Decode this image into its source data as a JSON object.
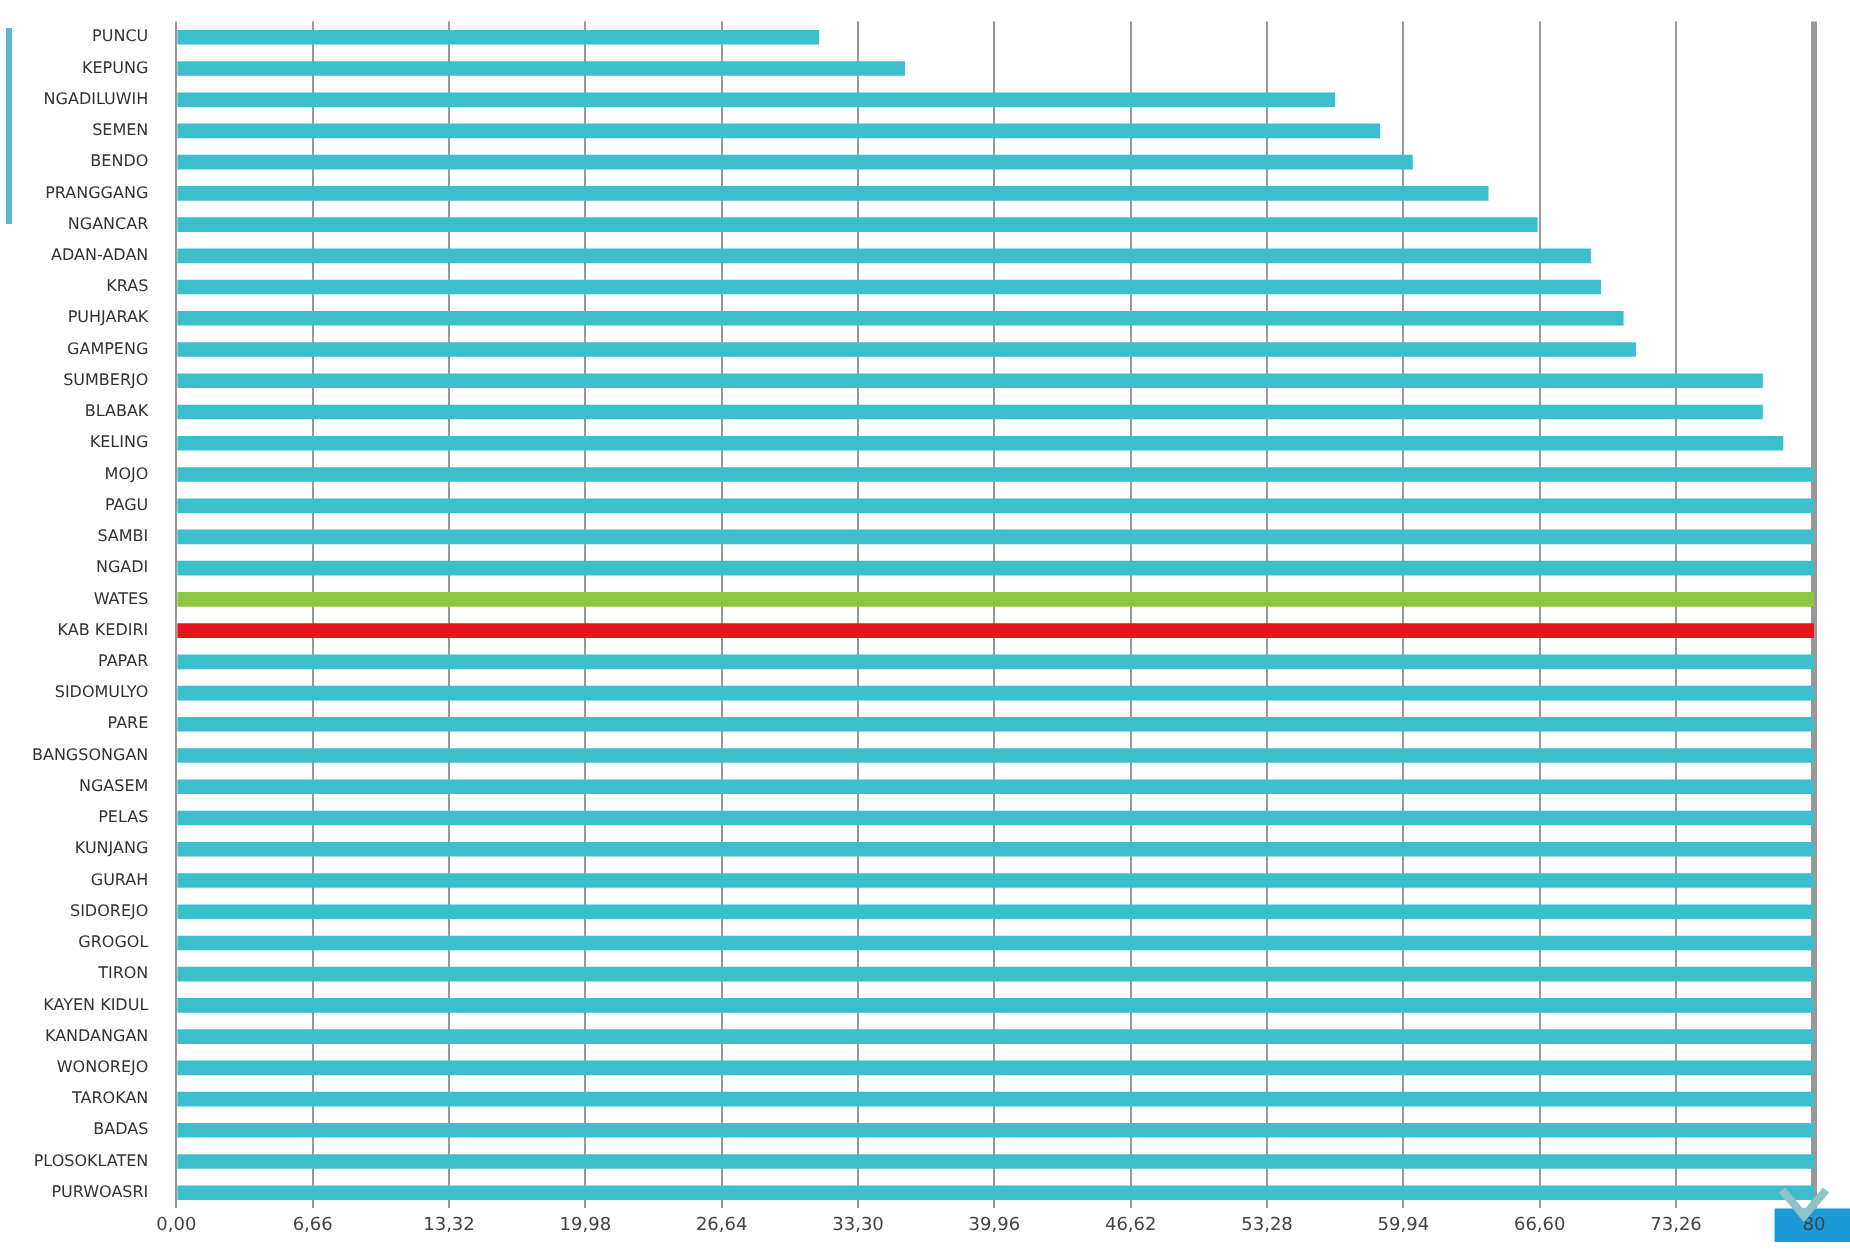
{
  "chart_data": {
    "type": "bar",
    "orientation": "horizontal",
    "categories": [
      "PUNCU",
      "KEPUNG",
      "NGADILUWIH",
      "SEMEN",
      "BENDO",
      "PRANGGANG",
      "NGANCAR",
      "ADAN-ADAN",
      "KRAS",
      "PUHJARAK",
      "GAMPENG",
      "SUMBERJO",
      "BLABAK",
      "KELING",
      "MOJO",
      "PAGU",
      "SAMBI",
      "NGADI",
      "WATES",
      "KAB KEDIRI",
      "PAPAR",
      "SIDOMULYO",
      "PARE",
      "BANGSONGAN",
      "NGASEM",
      "PELAS",
      "KUNJANG",
      "GURAH",
      "SIDOREJO",
      "GROGOL",
      "TIRON",
      "KAYEN KIDUL",
      "KANDANGAN",
      "WONOREJO",
      "TAROKAN",
      "BADAS",
      "PLOSOKLATEN",
      "PURWOASRI"
    ],
    "values": [
      31.4,
      35.6,
      56.6,
      58.8,
      60.4,
      64.1,
      66.5,
      69.1,
      69.6,
      70.7,
      71.3,
      77.5,
      77.5,
      78.5,
      80,
      80,
      80,
      80,
      80,
      80,
      80,
      80,
      80,
      80,
      80,
      80,
      80,
      80,
      80,
      80,
      80,
      80,
      80,
      80,
      80,
      80,
      80,
      80
    ],
    "colors": [
      "#3bbfcc",
      "#3bbfcc",
      "#3bbfcc",
      "#3bbfcc",
      "#3bbfcc",
      "#3bbfcc",
      "#3bbfcc",
      "#3bbfcc",
      "#3bbfcc",
      "#3bbfcc",
      "#3bbfcc",
      "#3bbfcc",
      "#3bbfcc",
      "#3bbfcc",
      "#3bbfcc",
      "#3bbfcc",
      "#3bbfcc",
      "#3bbfcc",
      "#8dc63f",
      "#e8141b",
      "#3bbfcc",
      "#3bbfcc",
      "#3bbfcc",
      "#3bbfcc",
      "#3bbfcc",
      "#3bbfcc",
      "#3bbfcc",
      "#3bbfcc",
      "#3bbfcc",
      "#3bbfcc",
      "#3bbfcc",
      "#3bbfcc",
      "#3bbfcc",
      "#3bbfcc",
      "#3bbfcc",
      "#3bbfcc",
      "#3bbfcc",
      "#3bbfcc"
    ],
    "xlim": [
      0,
      80
    ],
    "xticks": [
      {
        "value": 0,
        "label": "0,00"
      },
      {
        "value": 6.66,
        "label": "6,66"
      },
      {
        "value": 13.32,
        "label": "13,32"
      },
      {
        "value": 19.98,
        "label": "19,98"
      },
      {
        "value": 26.64,
        "label": "26,64"
      },
      {
        "value": 33.3,
        "label": "33,30"
      },
      {
        "value": 39.96,
        "label": "39,96"
      },
      {
        "value": 46.62,
        "label": "46,62"
      },
      {
        "value": 53.28,
        "label": "53,28"
      },
      {
        "value": 59.94,
        "label": "59,94"
      },
      {
        "value": 66.6,
        "label": "66,60"
      },
      {
        "value": 73.26,
        "label": "73,26"
      },
      80
    ],
    "grid": "x"
  }
}
